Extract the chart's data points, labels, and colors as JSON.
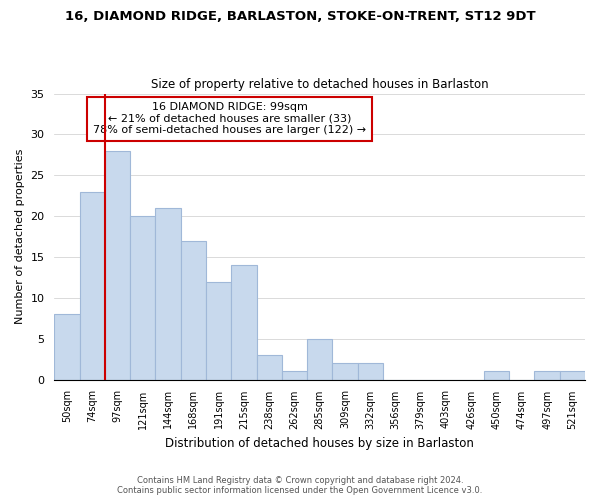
{
  "title": "16, DIAMOND RIDGE, BARLASTON, STOKE-ON-TRENT, ST12 9DT",
  "subtitle": "Size of property relative to detached houses in Barlaston",
  "xlabel": "Distribution of detached houses by size in Barlaston",
  "ylabel": "Number of detached properties",
  "bin_labels": [
    "50sqm",
    "74sqm",
    "97sqm",
    "121sqm",
    "144sqm",
    "168sqm",
    "191sqm",
    "215sqm",
    "238sqm",
    "262sqm",
    "285sqm",
    "309sqm",
    "332sqm",
    "356sqm",
    "379sqm",
    "403sqm",
    "426sqm",
    "450sqm",
    "474sqm",
    "497sqm",
    "521sqm"
  ],
  "bar_heights": [
    8,
    23,
    28,
    20,
    21,
    17,
    12,
    14,
    3,
    1,
    5,
    2,
    2,
    0,
    0,
    0,
    0,
    1,
    0,
    1,
    1
  ],
  "bar_color": "#c8d9ed",
  "bar_edge_color": "#a0b8d8",
  "property_line_x": 2,
  "smaller_pct": "21%",
  "smaller_count": 33,
  "larger_pct": "78%",
  "larger_count": 122,
  "annotation_box_color": "#ffffff",
  "annotation_box_edge": "#cc0000",
  "property_line_color": "#cc0000",
  "ylim": [
    0,
    35
  ],
  "yticks": [
    0,
    5,
    10,
    15,
    20,
    25,
    30,
    35
  ],
  "footer_line1": "Contains HM Land Registry data © Crown copyright and database right 2024.",
  "footer_line2": "Contains public sector information licensed under the Open Government Licence v3.0.",
  "background_color": "#ffffff"
}
